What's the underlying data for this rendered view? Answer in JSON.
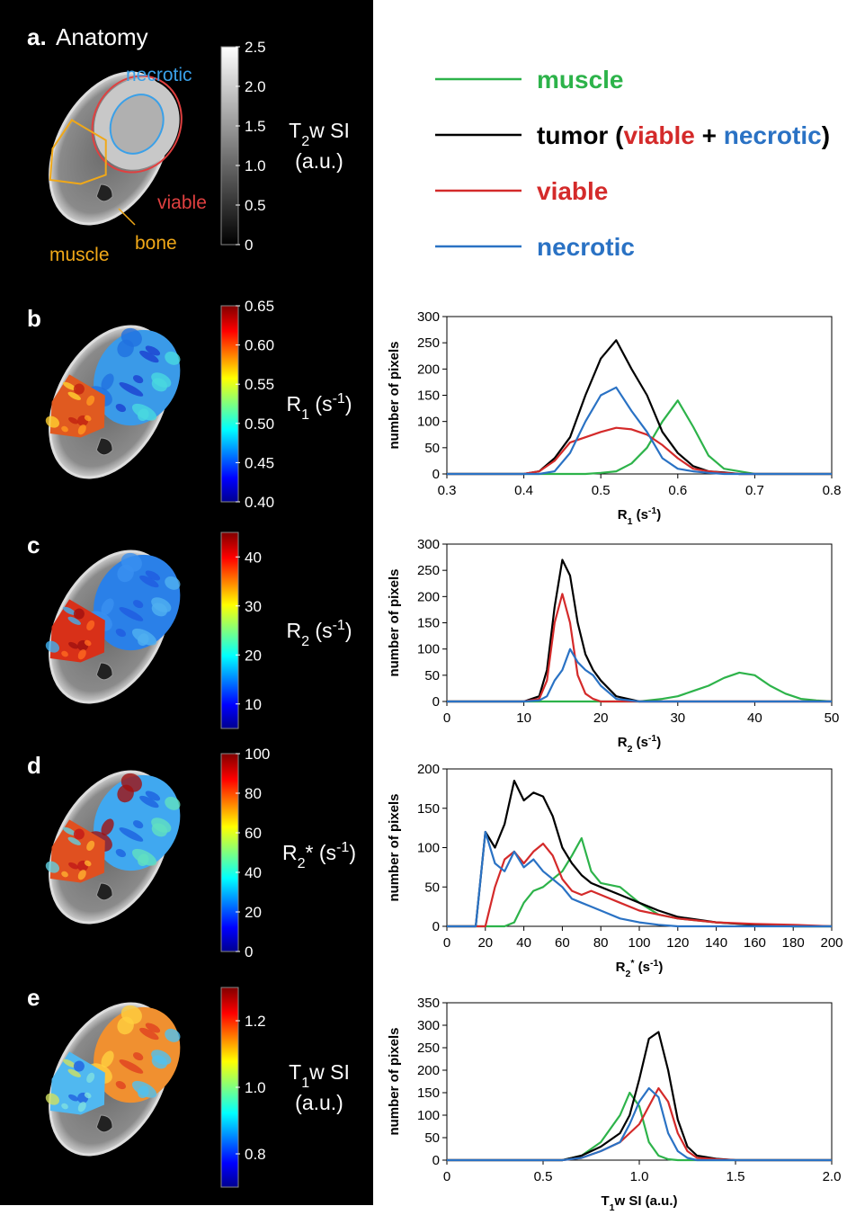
{
  "legend": [
    {
      "color": "#2db34a",
      "label": [
        {
          "text": "muscle",
          "color": "#2db34a"
        }
      ]
    },
    {
      "color": "#000000",
      "label": [
        {
          "text": "tumor (",
          "color": "#000000"
        },
        {
          "text": "viable",
          "color": "#d42a2a"
        },
        {
          "text": " + ",
          "color": "#000000"
        },
        {
          "text": "necrotic",
          "color": "#2a72c4"
        },
        {
          "text": ")",
          "color": "#000000"
        }
      ]
    },
    {
      "color": "#d42a2a",
      "label": [
        {
          "text": "viable",
          "color": "#d42a2a"
        }
      ]
    },
    {
      "color": "#2a72c4",
      "label": [
        {
          "text": "necrotic",
          "color": "#2a72c4"
        }
      ]
    }
  ],
  "panels": [
    {
      "label": "a.",
      "title": "Anatomy",
      "colormap": "gray",
      "range": [
        0,
        2.5
      ],
      "ticks": [
        0,
        0.5,
        {
          "value": 1,
          "label": "1.0"
        },
        1.5,
        {
          "value": 2,
          "label": "2.0"
        },
        2.5
      ],
      "cbar_label": [
        [
          {
            "text": "T"
          },
          {
            "text": "2",
            "sub": true
          },
          {
            "text": "w SI"
          }
        ],
        [
          {
            "text": "(a.u.)"
          }
        ]
      ],
      "annotations": [
        {
          "text": "necrotic",
          "color": "#3aa0e8"
        },
        {
          "text": "viable",
          "color": "#e04040"
        },
        {
          "text": "muscle",
          "color": "#f0a818"
        },
        {
          "text": "bone",
          "color": "#f0a818"
        }
      ]
    },
    {
      "label": "b",
      "colormap": "jet",
      "range": [
        0.4,
        0.65
      ],
      "ticks": [
        {
          "value": 0.4,
          "label": "0.40"
        },
        0.45,
        {
          "value": 0.5,
          "label": "0.50"
        },
        0.55,
        {
          "value": 0.6,
          "label": "0.60"
        },
        0.65
      ],
      "cbar_label": [
        [
          {
            "text": "R"
          },
          {
            "text": "1",
            "sub": true
          },
          {
            "text": " (s"
          },
          {
            "text": "-1",
            "sup": true
          },
          {
            "text": ")"
          }
        ]
      ]
    },
    {
      "label": "c",
      "colormap": "jet",
      "range": [
        5,
        45
      ],
      "ticks": [
        10,
        20,
        30,
        40
      ],
      "cbar_label": [
        [
          {
            "text": "R"
          },
          {
            "text": "2",
            "sub": true
          },
          {
            "text": " (s"
          },
          {
            "text": "-1",
            "sup": true
          },
          {
            "text": ")"
          }
        ]
      ]
    },
    {
      "label": "d",
      "colormap": "jet",
      "range": [
        0,
        100
      ],
      "ticks": [
        0,
        20,
        40,
        60,
        80,
        100
      ],
      "cbar_label": [
        [
          {
            "text": "R"
          },
          {
            "text": "2",
            "sub": true
          },
          {
            "text": "* (s"
          },
          {
            "text": "-1",
            "sup": true
          },
          {
            "text": ")"
          }
        ]
      ]
    },
    {
      "label": "e",
      "colormap": "jet",
      "range": [
        0.7,
        1.3
      ],
      "ticks": [
        0.8,
        {
          "value": 1,
          "label": "1.0"
        },
        1.2
      ],
      "cbar_label": [
        [
          {
            "text": "T"
          },
          {
            "text": "1",
            "sub": true
          },
          {
            "text": "w SI"
          }
        ],
        [
          {
            "text": "(a.u.)"
          }
        ]
      ]
    }
  ],
  "chart_data": [
    {
      "type": "line",
      "ylabel": "number of pixels",
      "xlabel": [
        {
          "text": "R"
        },
        {
          "text": "1",
          "sub": true
        },
        {
          "text": " (s"
        },
        {
          "text": "-1",
          "sup": true
        },
        {
          "text": ")"
        }
      ],
      "xlim": [
        0.3,
        0.8
      ],
      "xticks": [
        0.3,
        0.4,
        0.5,
        0.6,
        0.7,
        0.8
      ],
      "ylim": [
        0,
        300
      ],
      "yticks": [
        0,
        50,
        100,
        150,
        200,
        250,
        300
      ],
      "x": [
        0.3,
        0.4,
        0.42,
        0.44,
        0.46,
        0.48,
        0.5,
        0.52,
        0.54,
        0.56,
        0.58,
        0.6,
        0.62,
        0.64,
        0.66,
        0.68,
        0.7,
        0.8
      ],
      "series": [
        {
          "color": "#2db34a",
          "values": [
            0,
            0,
            0,
            0,
            0,
            0,
            2,
            5,
            20,
            50,
            100,
            140,
            90,
            35,
            10,
            5,
            0,
            0
          ]
        },
        {
          "color": "#000000",
          "values": [
            0,
            0,
            5,
            30,
            70,
            150,
            220,
            255,
            200,
            150,
            80,
            40,
            15,
            5,
            3,
            0,
            0,
            0
          ]
        },
        {
          "color": "#d42a2a",
          "values": [
            0,
            0,
            5,
            25,
            60,
            70,
            80,
            88,
            85,
            75,
            55,
            30,
            10,
            5,
            2,
            0,
            0,
            0
          ]
        },
        {
          "color": "#2a72c4",
          "values": [
            0,
            0,
            0,
            5,
            40,
            100,
            150,
            165,
            120,
            80,
            30,
            10,
            5,
            2,
            0,
            0,
            0,
            0
          ]
        }
      ]
    },
    {
      "type": "line",
      "ylabel": "number of pixels",
      "xlabel": [
        {
          "text": "R"
        },
        {
          "text": "2",
          "sub": true
        },
        {
          "text": " (s"
        },
        {
          "text": "-1",
          "sup": true
        },
        {
          "text": ")"
        }
      ],
      "xlim": [
        0,
        50
      ],
      "xticks": [
        0,
        10,
        20,
        30,
        40,
        50
      ],
      "ylim": [
        0,
        300
      ],
      "yticks": [
        0,
        50,
        100,
        150,
        200,
        250,
        300
      ],
      "x": [
        0,
        10,
        12,
        13,
        14,
        15,
        16,
        17,
        18,
        19,
        20,
        22,
        25,
        28,
        30,
        32,
        34,
        36,
        38,
        40,
        42,
        44,
        46,
        48,
        50
      ],
      "series": [
        {
          "color": "#2db34a",
          "values": [
            0,
            0,
            0,
            0,
            0,
            0,
            0,
            0,
            0,
            0,
            0,
            0,
            0,
            5,
            10,
            20,
            30,
            45,
            55,
            50,
            30,
            15,
            5,
            2,
            0
          ]
        },
        {
          "color": "#000000",
          "values": [
            0,
            0,
            10,
            60,
            180,
            270,
            240,
            150,
            90,
            60,
            40,
            10,
            0,
            0,
            0,
            0,
            0,
            0,
            0,
            0,
            0,
            0,
            0,
            0,
            0
          ]
        },
        {
          "color": "#d42a2a",
          "values": [
            0,
            0,
            5,
            40,
            150,
            205,
            150,
            50,
            15,
            5,
            0,
            0,
            0,
            0,
            0,
            0,
            0,
            0,
            0,
            0,
            0,
            0,
            0,
            0,
            0
          ]
        },
        {
          "color": "#2a72c4",
          "values": [
            0,
            0,
            2,
            10,
            40,
            60,
            100,
            75,
            60,
            50,
            30,
            5,
            0,
            0,
            0,
            0,
            0,
            0,
            0,
            0,
            0,
            0,
            0,
            0,
            0
          ]
        }
      ]
    },
    {
      "type": "line",
      "ylabel": "number of pixels",
      "xlabel": [
        {
          "text": "R"
        },
        {
          "text": "2",
          "sub": true
        },
        {
          "text": "*",
          "sup": true
        },
        {
          "text": " (s"
        },
        {
          "text": "-1",
          "sup": true
        },
        {
          "text": ")"
        }
      ],
      "xlim": [
        0,
        200
      ],
      "xticks": [
        0,
        20,
        40,
        60,
        80,
        100,
        120,
        140,
        160,
        180,
        200
      ],
      "ylim": [
        0,
        200
      ],
      "yticks": [
        0,
        50,
        100,
        150,
        200
      ],
      "x": [
        0,
        15,
        20,
        25,
        30,
        35,
        40,
        45,
        50,
        55,
        60,
        65,
        70,
        75,
        80,
        90,
        100,
        110,
        120,
        140,
        160,
        180,
        200
      ],
      "series": [
        {
          "color": "#2db34a",
          "values": [
            0,
            0,
            0,
            0,
            0,
            5,
            30,
            45,
            50,
            60,
            70,
            90,
            112,
            70,
            55,
            50,
            30,
            15,
            10,
            5,
            2,
            0,
            0
          ]
        },
        {
          "color": "#000000",
          "values": [
            0,
            0,
            120,
            100,
            130,
            185,
            160,
            170,
            165,
            140,
            100,
            80,
            65,
            55,
            50,
            40,
            30,
            20,
            12,
            5,
            2,
            0,
            0
          ]
        },
        {
          "color": "#d42a2a",
          "values": [
            0,
            0,
            0,
            50,
            85,
            95,
            80,
            95,
            105,
            90,
            60,
            45,
            40,
            45,
            40,
            30,
            20,
            15,
            10,
            5,
            3,
            2,
            0
          ]
        },
        {
          "color": "#2a72c4",
          "values": [
            0,
            0,
            120,
            80,
            70,
            95,
            75,
            85,
            70,
            60,
            50,
            35,
            30,
            25,
            20,
            10,
            5,
            2,
            0,
            0,
            0,
            0,
            0
          ]
        }
      ]
    },
    {
      "type": "line",
      "ylabel": "number of pixels",
      "xlabel": [
        {
          "text": "T"
        },
        {
          "text": "1",
          "sub": true
        },
        {
          "text": "w SI (a.u.)"
        }
      ],
      "xlim": [
        0,
        2
      ],
      "xticks": [
        0,
        0.5,
        {
          "value": 1,
          "label": "1.0"
        },
        1.5,
        {
          "value": 2,
          "label": "2.0"
        }
      ],
      "ylim": [
        0,
        350
      ],
      "yticks": [
        0,
        50,
        100,
        150,
        200,
        250,
        300,
        350
      ],
      "x": [
        0,
        0.6,
        0.7,
        0.8,
        0.9,
        0.95,
        1.0,
        1.05,
        1.1,
        1.15,
        1.2,
        1.25,
        1.3,
        1.4,
        1.5,
        2.0
      ],
      "series": [
        {
          "color": "#2db34a",
          "values": [
            0,
            0,
            10,
            40,
            100,
            150,
            120,
            40,
            10,
            2,
            0,
            0,
            0,
            0,
            0,
            0
          ]
        },
        {
          "color": "#000000",
          "values": [
            0,
            0,
            10,
            30,
            60,
            100,
            180,
            270,
            285,
            200,
            90,
            30,
            10,
            3,
            0,
            0
          ]
        },
        {
          "color": "#d42a2a",
          "values": [
            0,
            0,
            5,
            20,
            40,
            60,
            80,
            120,
            160,
            130,
            60,
            20,
            5,
            2,
            0,
            0
          ]
        },
        {
          "color": "#2a72c4",
          "values": [
            0,
            0,
            5,
            20,
            40,
            80,
            130,
            160,
            140,
            60,
            20,
            5,
            0,
            0,
            0,
            0
          ]
        }
      ]
    }
  ]
}
